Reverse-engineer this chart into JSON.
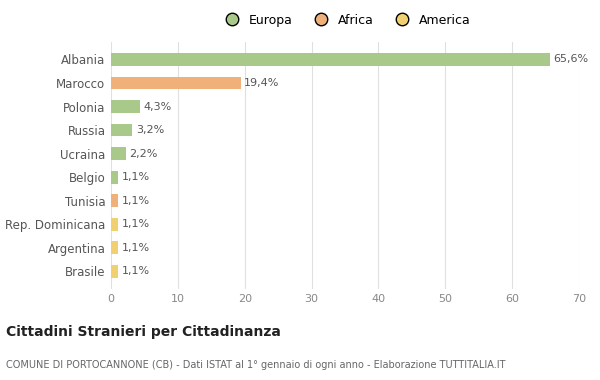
{
  "countries": [
    "Albania",
    "Marocco",
    "Polonia",
    "Russia",
    "Ucraina",
    "Belgio",
    "Tunisia",
    "Rep. Dominicana",
    "Argentina",
    "Brasile"
  ],
  "values": [
    65.6,
    19.4,
    4.3,
    3.2,
    2.2,
    1.1,
    1.1,
    1.1,
    1.1,
    1.1
  ],
  "labels": [
    "65,6%",
    "19,4%",
    "4,3%",
    "3,2%",
    "2,2%",
    "1,1%",
    "1,1%",
    "1,1%",
    "1,1%",
    "1,1%"
  ],
  "colors": [
    "#a8c98a",
    "#f0b07a",
    "#a8c98a",
    "#a8c98a",
    "#a8c98a",
    "#a8c98a",
    "#f0b07a",
    "#f0d070",
    "#f0d070",
    "#f0d070"
  ],
  "legend_labels": [
    "Europa",
    "Africa",
    "America"
  ],
  "legend_colors": [
    "#a8c98a",
    "#f0b07a",
    "#f0d070"
  ],
  "title": "Cittadini Stranieri per Cittadinanza",
  "subtitle": "COMUNE DI PORTOCANNONE (CB) - Dati ISTAT al 1° gennaio di ogni anno - Elaborazione TUTTITALIA.IT",
  "xlim": [
    0,
    70
  ],
  "xticks": [
    0,
    10,
    20,
    30,
    40,
    50,
    60,
    70
  ],
  "background_color": "#ffffff",
  "grid_color": "#e0e0e0",
  "bar_height": 0.55
}
